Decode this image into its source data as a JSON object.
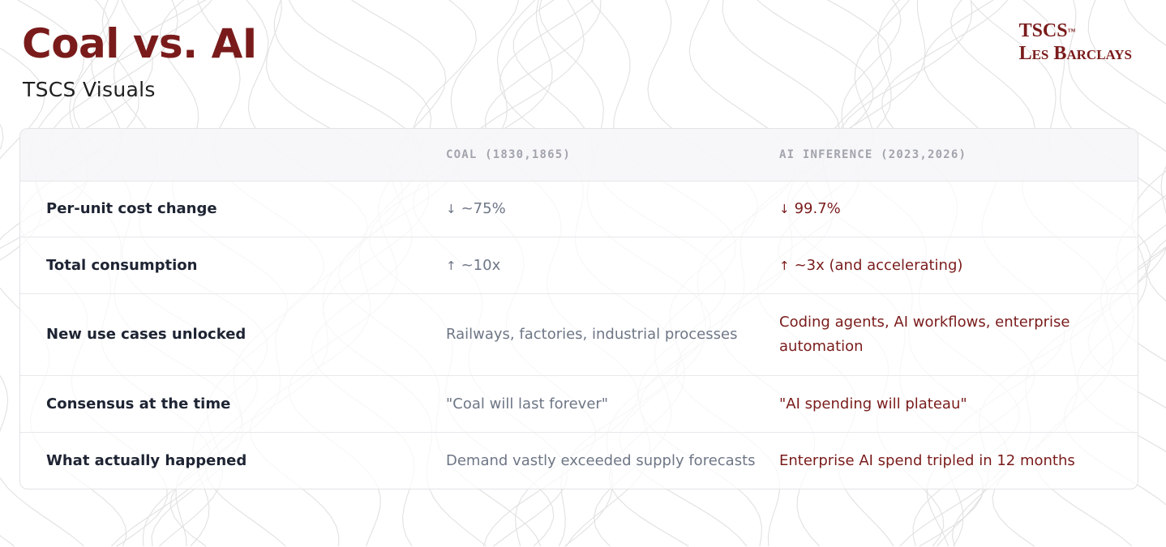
{
  "header": {
    "title": "Coal vs. AI",
    "subtitle": "TSCS Visuals"
  },
  "brand": {
    "name": "TSCS",
    "trademark": "™",
    "author": "Les Barclays"
  },
  "table": {
    "columns": [
      "",
      "COAL (1830,1865)",
      "AI INFERENCE (2023,2026)"
    ],
    "rows": [
      {
        "label": "Per-unit cost change",
        "coal_icon": "arrow-down-icon",
        "coal": "~75%",
        "ai_icon": "arrow-down-icon",
        "ai": "99.7%"
      },
      {
        "label": "Total consumption",
        "coal_icon": "arrow-up-icon",
        "coal": "~10x",
        "ai_icon": "arrow-up-icon",
        "ai": "~3x (and accelerating)"
      },
      {
        "label": "New use cases unlocked",
        "coal": "Railways, factories, industrial processes",
        "ai": "Coding agents, AI workflows, enterprise automation"
      },
      {
        "label": "Consensus at the time",
        "coal": "\"Coal will last forever\"",
        "ai": "\"AI spending will plateau\""
      },
      {
        "label": "What actually happened",
        "coal": "Demand vastly exceeded supply forecasts",
        "ai": "Enterprise AI spend tripled in 12 months"
      }
    ]
  },
  "colors": {
    "accent": "#7a1b1b",
    "label_text": "#1e2433",
    "muted_text": "#6e7686",
    "header_text": "#a2a4ad",
    "pattern_stroke": "#dcdcdc"
  }
}
